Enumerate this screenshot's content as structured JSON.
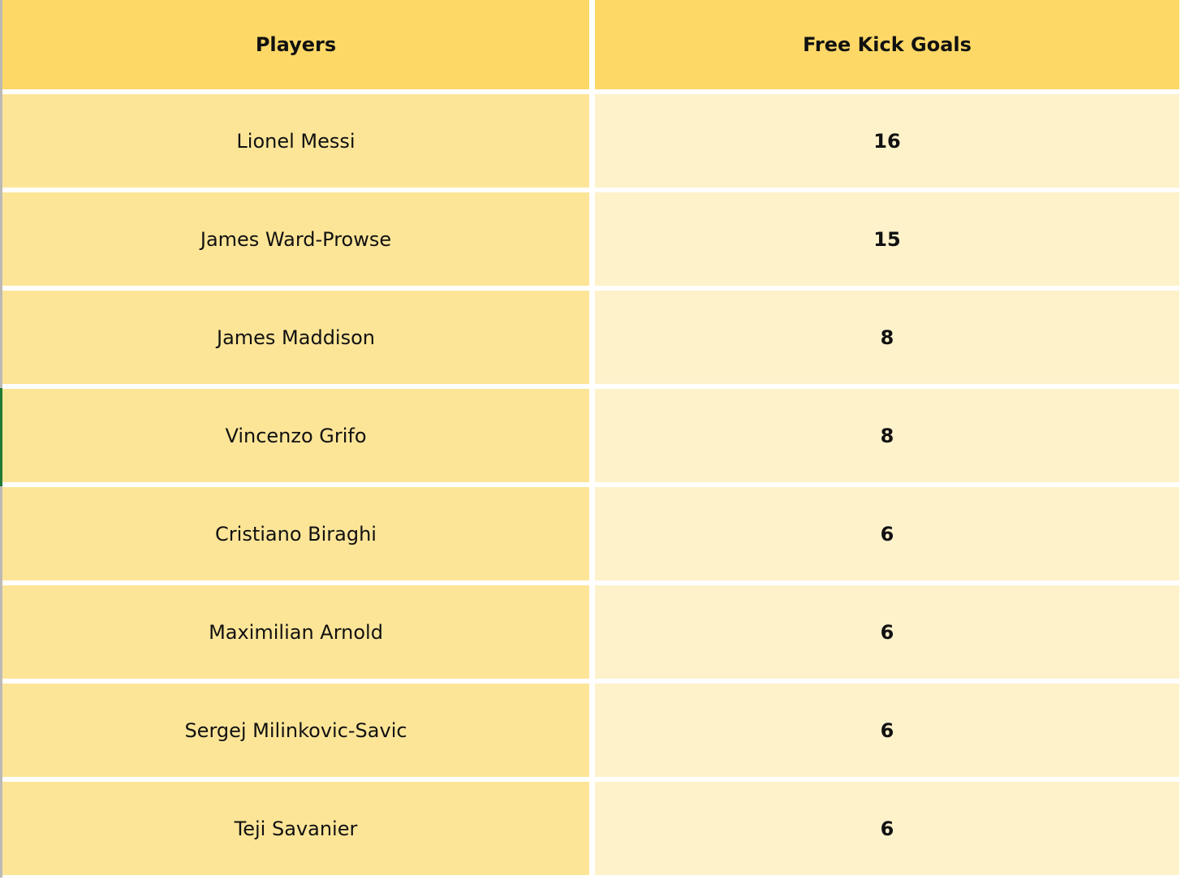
{
  "table": {
    "headers": [
      "Players",
      "Free Kick Goals"
    ],
    "rows": [
      {
        "player": "Lionel Messi",
        "goals": "16"
      },
      {
        "player": "James Ward-Prowse",
        "goals": "15"
      },
      {
        "player": "James Maddison",
        "goals": "8"
      },
      {
        "player": "Vincenzo Grifo",
        "goals": "8"
      },
      {
        "player": "Cristiano Biraghi",
        "goals": "6"
      },
      {
        "player": "Maximilian Arnold",
        "goals": "6"
      },
      {
        "player": "Sergej Milinkovic-Savic",
        "goals": "6"
      },
      {
        "player": "Teji Savanier",
        "goals": "6"
      }
    ]
  },
  "colors": {
    "header": "#fdd866",
    "players_column": "#fde598",
    "goals_column": "#fef2cb"
  }
}
